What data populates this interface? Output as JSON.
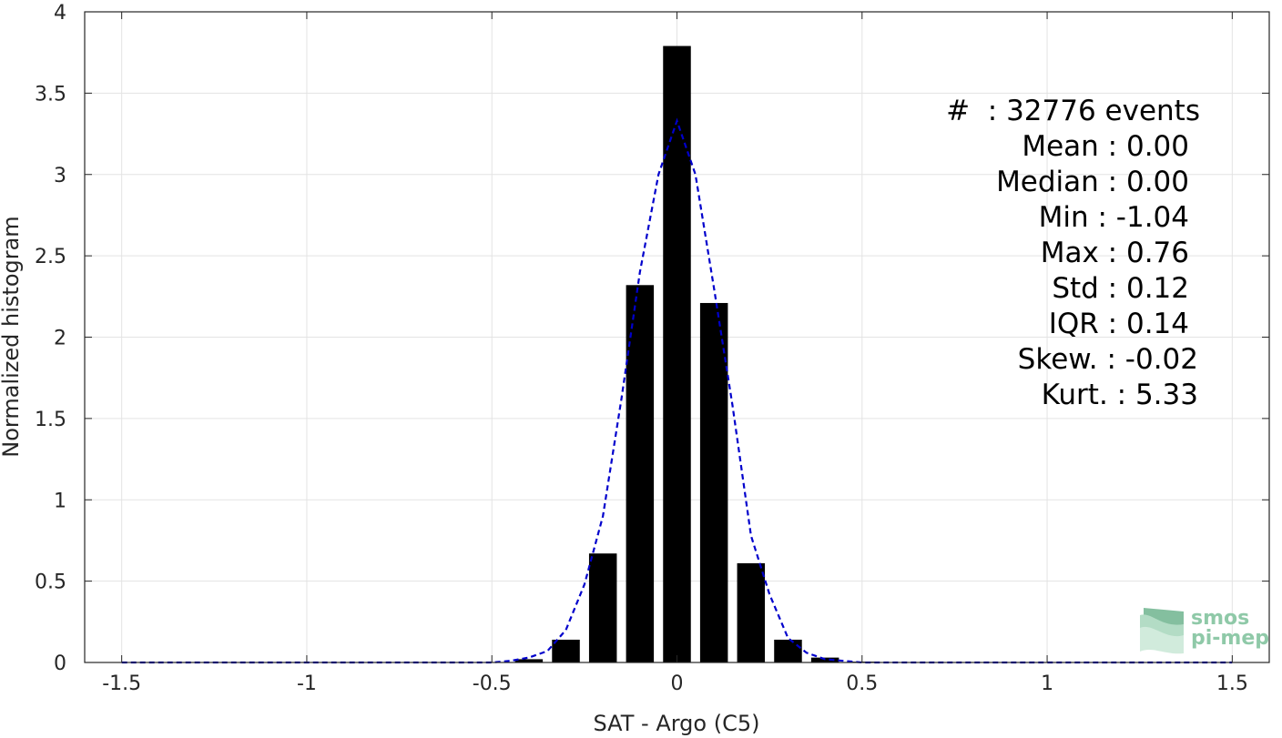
{
  "chart_data": {
    "type": "bar",
    "xlabel": "SAT - Argo (C5)",
    "ylabel": "Normalized histogram",
    "xlim": [
      -1.6,
      1.6
    ],
    "ylim": [
      0,
      4
    ],
    "grid": true,
    "x_ticks": [
      -1.5,
      -1,
      -0.5,
      0,
      0.5,
      1,
      1.5
    ],
    "x_tick_labels": [
      "-1.5",
      "-1",
      "-0.5",
      "0",
      "0.5",
      "1",
      "1.5"
    ],
    "y_ticks": [
      0,
      0.5,
      1,
      1.5,
      2,
      2.5,
      3,
      3.5,
      4
    ],
    "y_tick_labels": [
      "0",
      "0.5",
      "1",
      "1.5",
      "2",
      "2.5",
      "3",
      "3.5",
      "4"
    ],
    "bin_width": 0.075,
    "bars": {
      "x": [
        -0.4,
        -0.3,
        -0.2,
        -0.1,
        0.0,
        0.1,
        0.2,
        0.3,
        0.4,
        0.5
      ],
      "values": [
        0.02,
        0.14,
        0.67,
        2.32,
        3.79,
        2.21,
        0.61,
        0.14,
        0.03,
        0.005
      ],
      "color": "#000000"
    },
    "fit_curve": {
      "style": "dashed",
      "color": "#0000cc",
      "x": [
        -1.5,
        -0.5,
        -0.45,
        -0.4,
        -0.35,
        -0.3,
        -0.25,
        -0.2,
        -0.15,
        -0.1,
        -0.05,
        0.0,
        0.05,
        0.1,
        0.15,
        0.2,
        0.25,
        0.3,
        0.35,
        0.4,
        0.45,
        0.5,
        1.5
      ],
      "y": [
        0.0,
        0.0,
        0.01,
        0.03,
        0.07,
        0.2,
        0.48,
        0.9,
        1.62,
        2.4,
        3.0,
        3.33,
        3.0,
        2.3,
        1.58,
        0.78,
        0.42,
        0.15,
        0.06,
        0.02,
        0.01,
        0.0,
        0.0
      ]
    },
    "annotations": {
      "count_line": "#  : 32776 events",
      "stats": [
        "Mean : 0.00",
        "Median : 0.00",
        "Min : -1.04",
        "Max : 0.76",
        "Std : 0.12",
        "IQR : 0.14",
        "Skew. : -0.02",
        "Kurt. : 5.33"
      ]
    }
  },
  "logo": {
    "line1": "smos",
    "line2": "pi-mep",
    "color": "#8fc9a8"
  }
}
